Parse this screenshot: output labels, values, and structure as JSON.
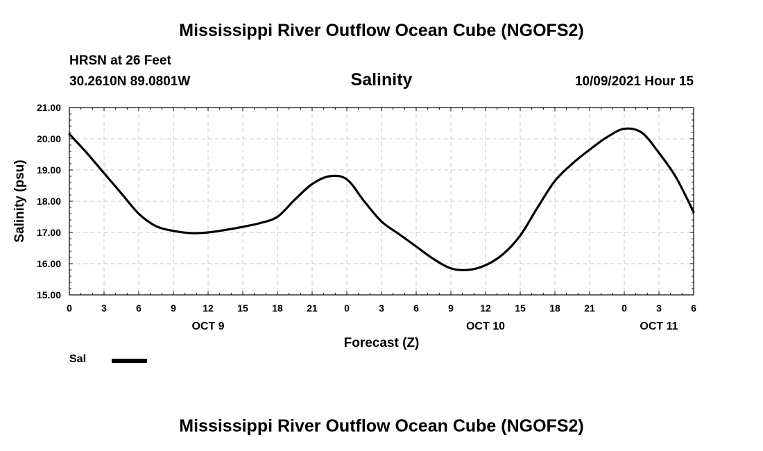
{
  "header": {
    "title": "Mississippi River Outflow Ocean Cube (NGOFS2)",
    "station": "HRSN at 26 Feet",
    "coords": "30.2610N  89.0801W",
    "subtitle": "Salinity",
    "datetime": "10/09/2021 Hour 15"
  },
  "footer": {
    "title": "Mississippi River Outflow Ocean Cube (NGOFS2)"
  },
  "legend": {
    "label": "Sal",
    "color": "#000000"
  },
  "chart_data": {
    "type": "line",
    "title": "Salinity",
    "xlabel": "Forecast (Z)",
    "ylabel": "Salinity (psu)",
    "xlim": [
      0,
      54
    ],
    "ylim": [
      15.0,
      21.0
    ],
    "grid": true,
    "x_ticks": [
      0,
      3,
      6,
      9,
      12,
      15,
      18,
      21,
      24,
      27,
      30,
      33,
      36,
      39,
      42,
      45,
      48,
      51,
      54
    ],
    "x_tick_labels": [
      "0",
      "3",
      "6",
      "9",
      "12",
      "15",
      "18",
      "21",
      "0",
      "3",
      "6",
      "9",
      "12",
      "15",
      "18",
      "21",
      "0",
      "3",
      "6"
    ],
    "y_ticks": [
      15.0,
      16.0,
      17.0,
      18.0,
      19.0,
      20.0,
      21.0
    ],
    "y_tick_labels": [
      "15.00",
      "16.00",
      "17.00",
      "18.00",
      "19.00",
      "20.00",
      "21.00"
    ],
    "day_labels": [
      {
        "x": 12,
        "label": "OCT 9"
      },
      {
        "x": 36,
        "label": "OCT 10"
      },
      {
        "x": 51,
        "label": "OCT 11"
      }
    ],
    "series": [
      {
        "name": "Sal",
        "color": "#000000",
        "x": [
          0,
          1.5,
          3,
          4.5,
          6,
          7.5,
          9,
          10.5,
          12,
          13.5,
          15,
          16.5,
          18,
          19.5,
          21,
          22.5,
          24,
          25.5,
          27,
          28.5,
          30,
          31.5,
          33,
          34.5,
          36,
          37.5,
          39,
          40.5,
          42,
          43.5,
          45,
          46.5,
          48,
          49.5,
          51,
          52.5,
          54
        ],
        "values": [
          20.15,
          19.55,
          18.9,
          18.25,
          17.6,
          17.2,
          17.05,
          16.98,
          17.0,
          17.08,
          17.18,
          17.3,
          17.5,
          18.05,
          18.55,
          18.8,
          18.7,
          18.0,
          17.35,
          16.95,
          16.55,
          16.15,
          15.85,
          15.8,
          15.95,
          16.3,
          16.9,
          17.8,
          18.65,
          19.2,
          19.65,
          20.05,
          20.32,
          20.2,
          19.55,
          18.75,
          17.65
        ]
      }
    ]
  }
}
